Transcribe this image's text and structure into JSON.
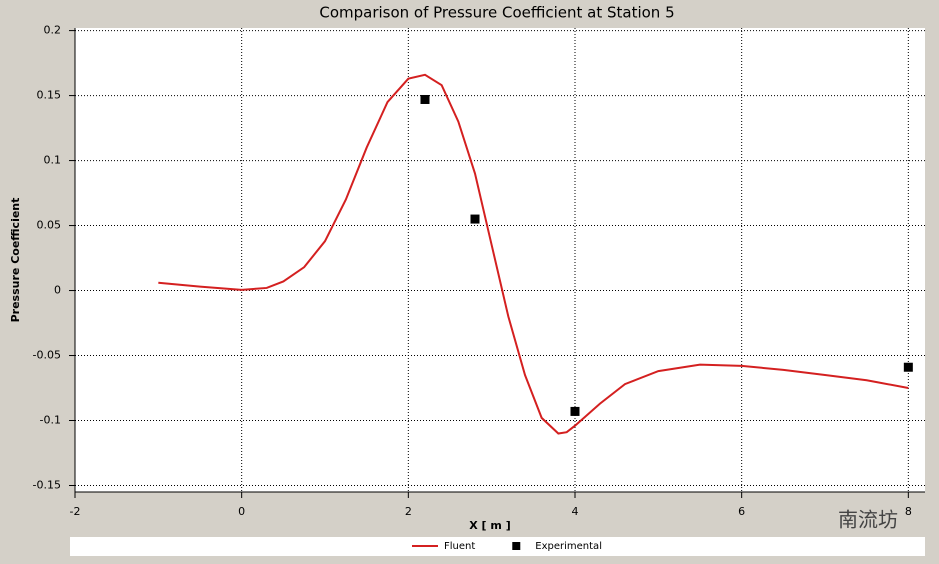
{
  "chart_data": {
    "type": "line",
    "title": "Comparison of Pressure Coefficient at Station 5",
    "x_label": "X [ m ]",
    "y_label": "Pressure Coefficient",
    "xlim": [
      -2,
      8.2
    ],
    "xticks": [
      -2,
      0,
      2,
      4,
      6,
      8
    ],
    "ylim": [
      -0.155,
      0.202
    ],
    "yticks": [
      -0.15,
      -0.1,
      -0.05,
      0,
      0.05,
      0.1,
      0.15,
      0.2
    ],
    "grid": true,
    "legend": "bottom",
    "series": [
      {
        "name": "Fluent",
        "type": "line",
        "color": "#d42020",
        "x": [
          -1,
          -0.5,
          0,
          0.3,
          0.5,
          0.75,
          1,
          1.25,
          1.5,
          1.75,
          2,
          2.2,
          2.4,
          2.6,
          2.8,
          3,
          3.2,
          3.4,
          3.6,
          3.8,
          3.9,
          4,
          4.3,
          4.6,
          5,
          5.5,
          6,
          6.5,
          7,
          7.5,
          8
        ],
        "values": [
          0.006,
          0.003,
          0.0005,
          0.002,
          0.007,
          0.018,
          0.038,
          0.07,
          0.11,
          0.145,
          0.163,
          0.166,
          0.158,
          0.13,
          0.09,
          0.035,
          -0.02,
          -0.065,
          -0.098,
          -0.11,
          -0.109,
          -0.104,
          -0.087,
          -0.072,
          -0.062,
          -0.057,
          -0.058,
          -0.061,
          -0.065,
          -0.069,
          -0.075
        ]
      },
      {
        "name": "Experimental",
        "type": "scatter",
        "color": "#000000",
        "x": [
          2.2,
          2.8,
          4.0,
          8.0
        ],
        "values": [
          0.147,
          0.055,
          -0.093,
          -0.059
        ]
      }
    ],
    "watermark": "南流坊"
  }
}
